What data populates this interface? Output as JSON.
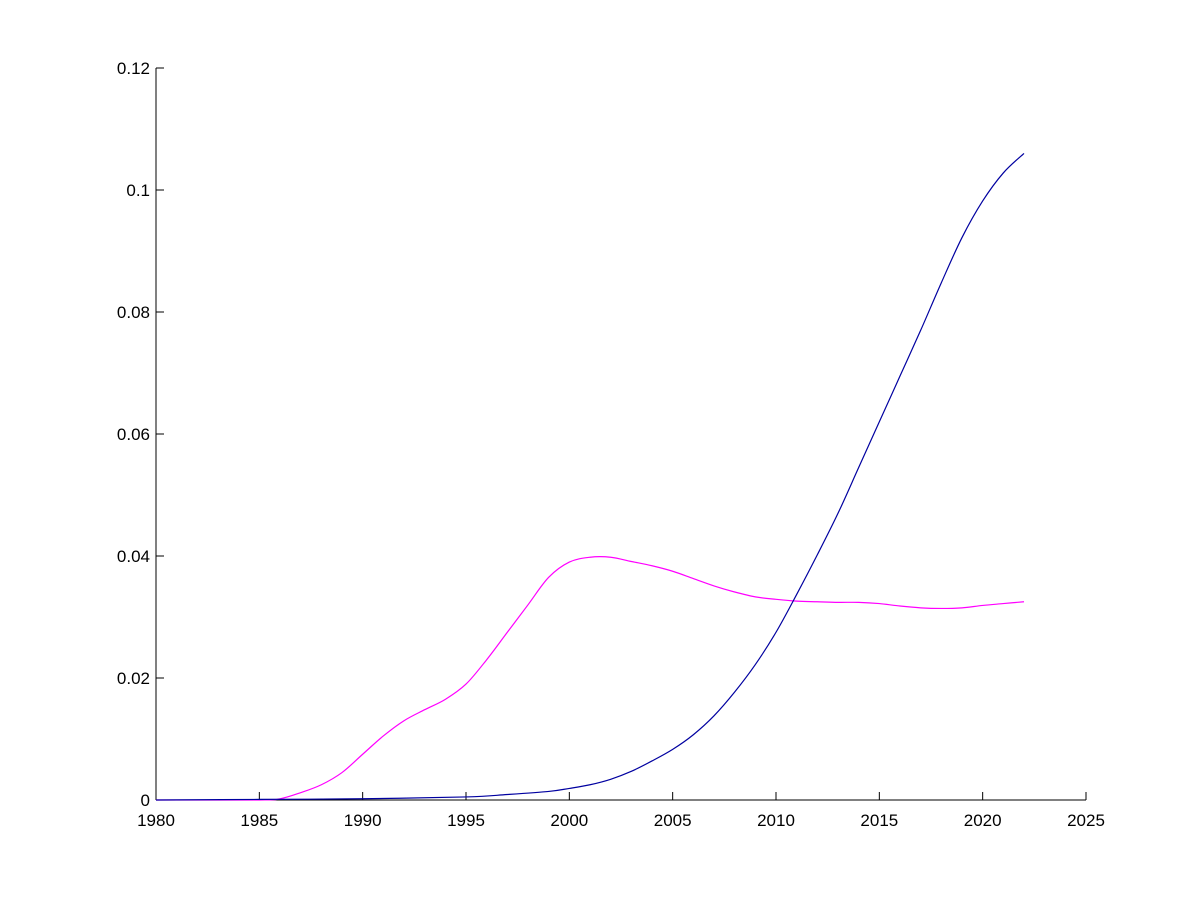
{
  "chart_data": {
    "type": "line",
    "title": "",
    "xlabel": "",
    "ylabel": "",
    "xlim": [
      1980,
      2025
    ],
    "ylim": [
      0,
      0.12
    ],
    "grid": false,
    "legend": "none",
    "x_ticks": [
      "1980",
      "1985",
      "1990",
      "1995",
      "2000",
      "2005",
      "2010",
      "2015",
      "2020",
      "2025"
    ],
    "y_ticks": [
      "0",
      "0.02",
      "0.04",
      "0.06",
      "0.08",
      "0.1",
      "0.12"
    ],
    "series": [
      {
        "color": "#ff00ff",
        "x": [
          1980,
          1985,
          1986,
          1987,
          1988,
          1989,
          1990,
          1991,
          1992,
          1993,
          1994,
          1995,
          1996,
          1997,
          1998,
          1999,
          2000,
          2001,
          2002,
          2003,
          2004,
          2005,
          2006,
          2007,
          2008,
          2009,
          2010,
          2011,
          2012,
          2013,
          2014,
          2015,
          2016,
          2017,
          2018,
          2019,
          2020,
          2021,
          2022
        ],
        "y": [
          0,
          0,
          0.0002,
          0.0012,
          0.0025,
          0.0045,
          0.0075,
          0.0105,
          0.013,
          0.0148,
          0.0165,
          0.019,
          0.023,
          0.0275,
          0.032,
          0.0365,
          0.039,
          0.0398,
          0.0398,
          0.0391,
          0.0384,
          0.0375,
          0.0363,
          0.0351,
          0.0341,
          0.0333,
          0.0329,
          0.0326,
          0.0325,
          0.0324,
          0.0324,
          0.0322,
          0.0318,
          0.0315,
          0.0314,
          0.0315,
          0.0319,
          0.0322,
          0.0325
        ]
      },
      {
        "color": "#0000a0",
        "x": [
          1980,
          1985,
          1990,
          1995,
          1997,
          1999,
          2000,
          2001,
          2002,
          2003,
          2004,
          2005,
          2006,
          2007,
          2008,
          2009,
          2010,
          2011,
          2012,
          2013,
          2014,
          2015,
          2016,
          2017,
          2018,
          2019,
          2020,
          2021,
          2022
        ],
        "y": [
          0,
          0.0001,
          0.0002,
          0.0005,
          0.0009,
          0.0014,
          0.0019,
          0.0025,
          0.0034,
          0.0047,
          0.0064,
          0.0083,
          0.0107,
          0.0138,
          0.0177,
          0.0222,
          0.0275,
          0.0337,
          0.0402,
          0.047,
          0.0545,
          0.062,
          0.0695,
          0.077,
          0.0848,
          0.0922,
          0.0982,
          0.1028,
          0.106
        ]
      }
    ]
  }
}
